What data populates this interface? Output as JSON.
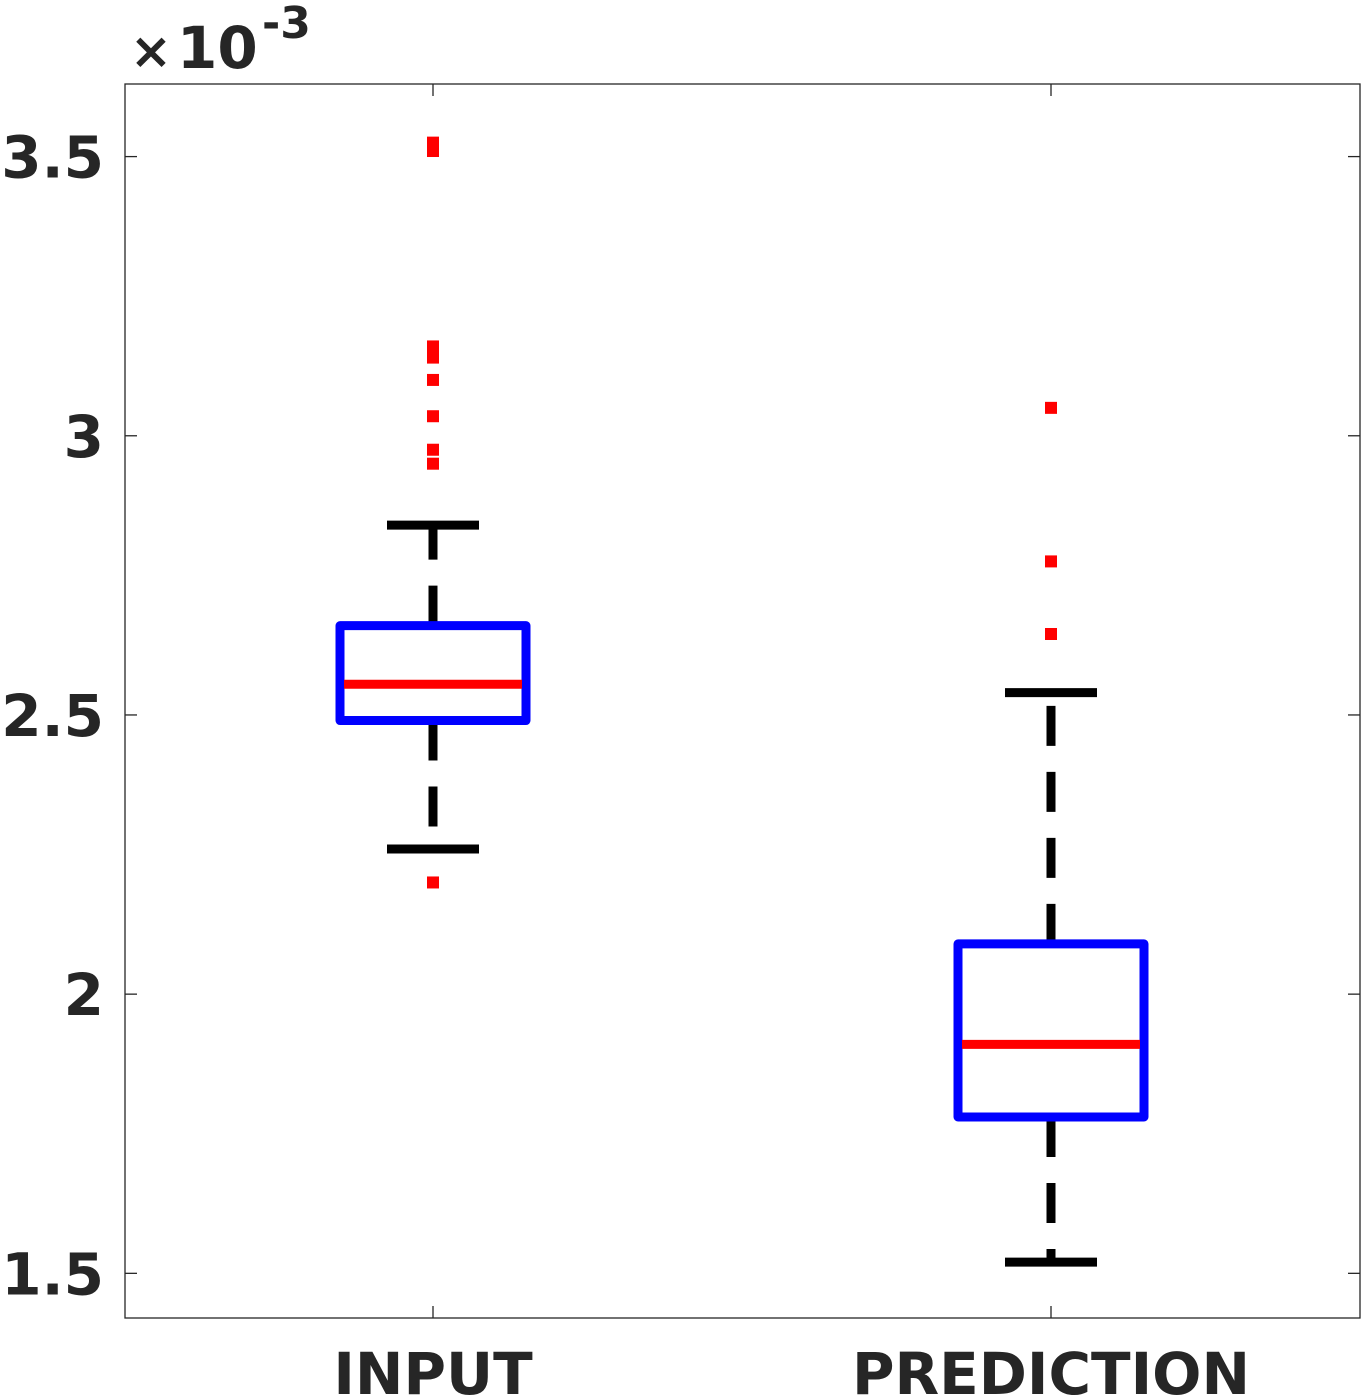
{
  "chart_data": {
    "type": "box",
    "categories": [
      "INPUT",
      "PREDICTION"
    ],
    "y_exponent_label": {
      "base": "10",
      "exponent": "-3"
    },
    "y_ticks": [
      1.5,
      2,
      2.5,
      3,
      3.5
    ],
    "y_tick_labels": [
      "1.5",
      "2",
      "2.5",
      "3",
      "3.5"
    ],
    "ylim": [
      1.42,
      3.63
    ],
    "ylabel": "",
    "xlabel": "",
    "title": "",
    "boxes": [
      {
        "name": "INPUT",
        "whisker_low": 2.26,
        "q1": 2.49,
        "median": 2.555,
        "q3": 2.66,
        "whisker_high": 2.84,
        "outliers": [
          2.2,
          2.95,
          2.975,
          3.035,
          3.1,
          3.14,
          3.16,
          3.51,
          3.525
        ]
      },
      {
        "name": "PREDICTION",
        "whisker_low": 1.52,
        "q1": 1.78,
        "median": 1.91,
        "q3": 2.09,
        "whisker_high": 2.54,
        "outliers": [
          2.645,
          2.775,
          3.05
        ]
      }
    ],
    "colors": {
      "box": "#0000ff",
      "median": "#ff0000",
      "whisker": "#000000",
      "outlier": "#ff0000",
      "axis": "#262626"
    },
    "grid": false
  }
}
